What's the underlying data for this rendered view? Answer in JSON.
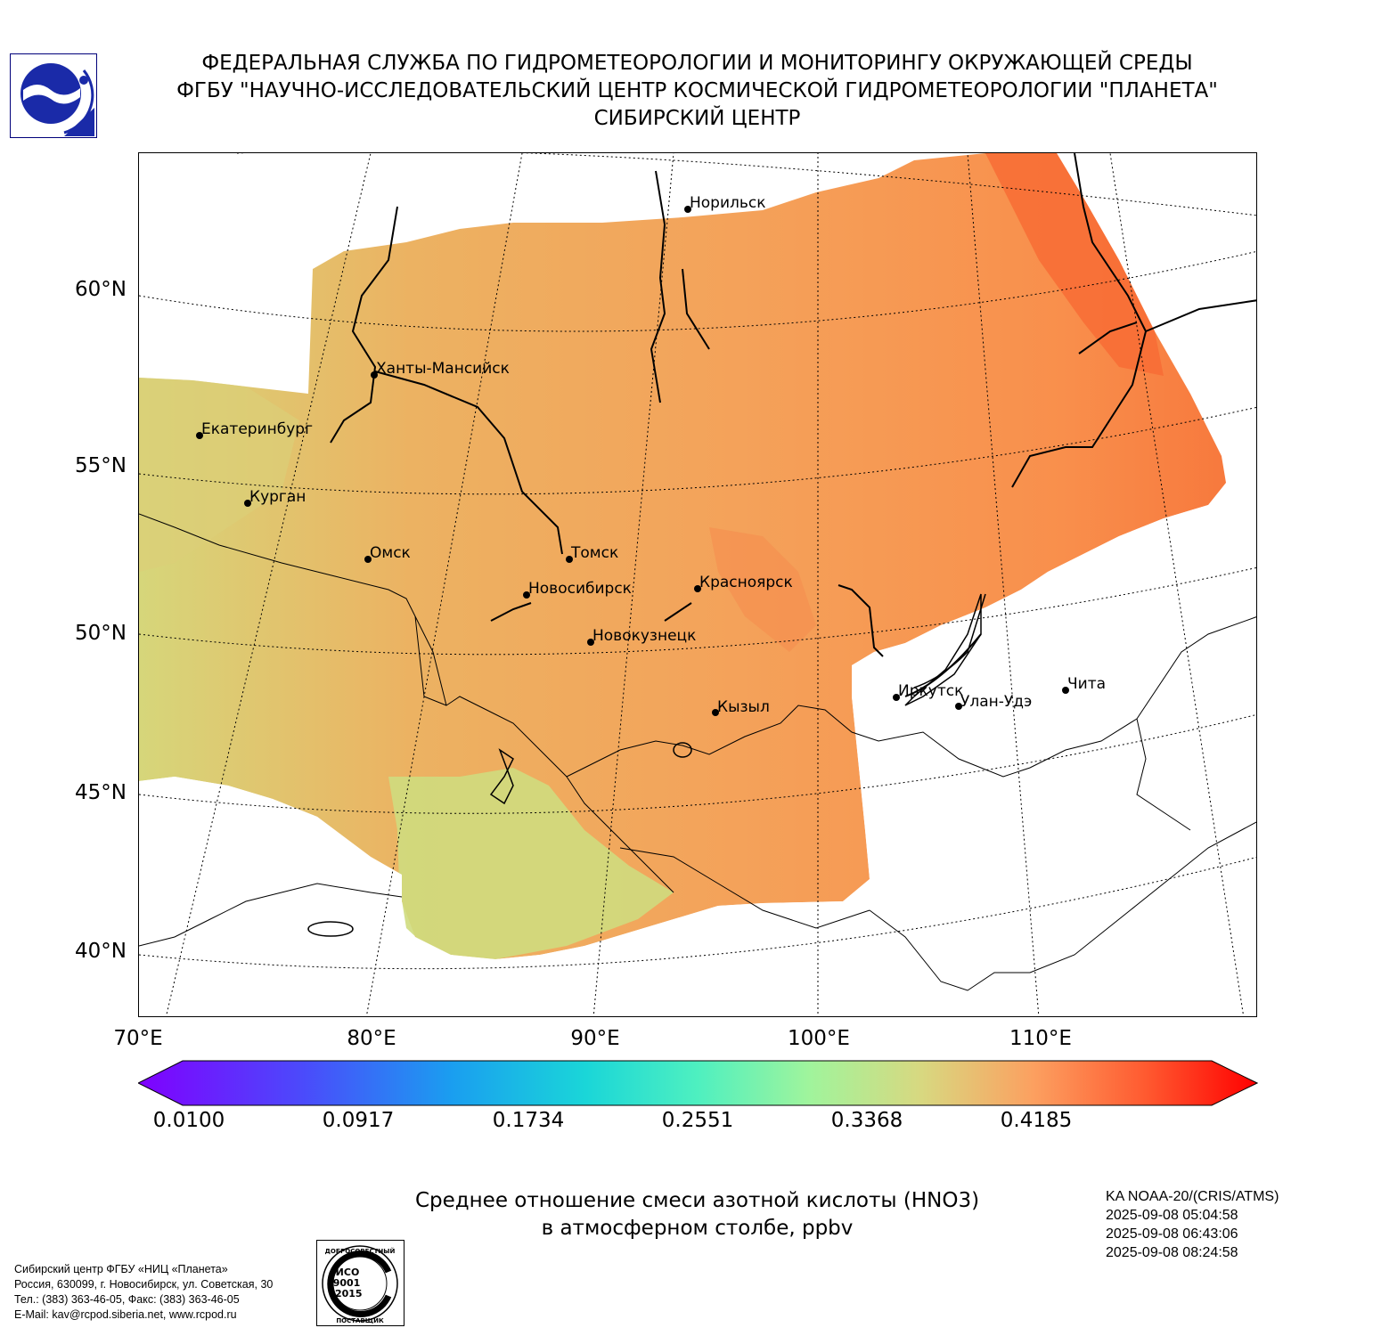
{
  "header": {
    "line1": "ФЕДЕРАЛЬНАЯ СЛУЖБА ПО ГИДРОМЕТЕОРОЛОГИИ И МОНИТОРИНГУ ОКРУЖАЮЩЕЙ СРЕДЫ",
    "line2": "ФГБУ \"НАУЧНО-ИССЛЕДОВАТЕЛЬСКИЙ ЦЕНТР КОСМИЧЕСКОЙ ГИДРОМЕТЕОРОЛОГИИ \"ПЛАНЕТА\"",
    "line3": "СИБИРСКИЙ ЦЕНТР"
  },
  "map": {
    "lat_labels": [
      "60°N",
      "55°N",
      "50°N",
      "45°N",
      "40°N"
    ],
    "lon_labels": [
      "70°E",
      "80°E",
      "90°E",
      "100°E",
      "110°E"
    ],
    "cities": [
      {
        "name": "Норильск"
      },
      {
        "name": "Ханты-Мансийск"
      },
      {
        "name": "Екатеринбург"
      },
      {
        "name": "Курган"
      },
      {
        "name": "Омск"
      },
      {
        "name": "Томск"
      },
      {
        "name": "Новосибирск"
      },
      {
        "name": "Красноярск"
      },
      {
        "name": "Новокузнецк"
      },
      {
        "name": "Иркутск"
      },
      {
        "name": "Чита"
      },
      {
        "name": "Улан-Удэ"
      },
      {
        "name": "Кызыл"
      }
    ]
  },
  "colorbar": {
    "ticks": [
      "0.0100",
      "0.0917",
      "0.1734",
      "0.2551",
      "0.3368",
      "0.4185"
    ],
    "colormap": "rainbow",
    "extend": "both"
  },
  "title": {
    "line1": "Среднее отношение смеси азотной кислоты (HNO3)",
    "line2": "в атмосферном столбе, ppbv"
  },
  "satellite": {
    "name": "KA NOAA-20/(CRIS/ATMS)",
    "times": [
      "2025-09-08 05:04:58",
      "2025-09-08 06:43:06",
      "2025-09-08 08:24:58"
    ]
  },
  "footer": {
    "line1": "Сибирский центр ФГБУ «НИЦ «Планета»",
    "line2": "Россия, 630099, г. Новосибирск, ул. Советская, 30",
    "line3": "Тел.: (383) 363-46-05, Факс: (383) 363-46-05",
    "line4": "E-Mail: kav@rcpod.siberia.net, www.rcpod.ru"
  },
  "iso_badge": {
    "top_text": "ДОБРОСОВЕСТНЫЙ",
    "bottom_text": "ПОСТАВЩИК",
    "code1": "ИСО",
    "code2": "9001",
    "code3": "-2015"
  }
}
